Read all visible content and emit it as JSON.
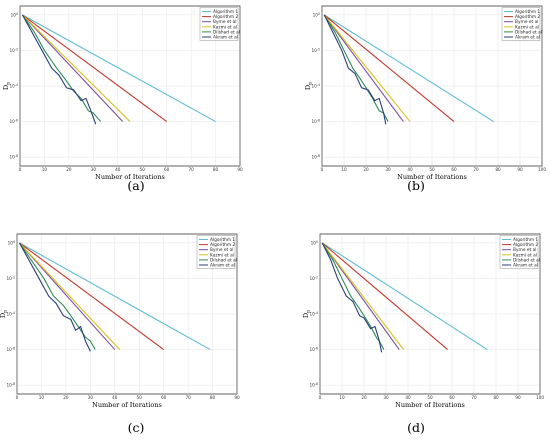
{
  "figure": {
    "legend_entries": [
      "Algorithm 1",
      "Algorithm 2",
      "Byrne et al",
      "Kazmi et al",
      "Dilshad et al",
      "Akram et al"
    ]
  },
  "colors": {
    "Algorithm 1": "#5dbcd6",
    "Algorithm 2": "#c0392b",
    "Byrne et al": "#7b4fa0",
    "Kazmi et al": "#d8c21c",
    "Dilshad et al": "#2e8b57",
    "Akram et al": "#2c3e7a"
  },
  "chart_data": [
    {
      "type": "line",
      "caption": "(a)",
      "xlabel": "Number of Iterations",
      "ylabel": "D_n",
      "xlim": [
        0,
        90
      ],
      "xticks": [
        0,
        10,
        20,
        30,
        40,
        50,
        60,
        70,
        80,
        90
      ],
      "yscale": "log",
      "yticks": [
        "10^0",
        "10^-2",
        "10^-4",
        "10^-6",
        "10^-8"
      ],
      "grid": true,
      "legend_position": "top-right",
      "series": [
        {
          "name": "Algorithm 1",
          "x": [
            1,
            80
          ],
          "y": [
            1.0,
            1e-06
          ]
        },
        {
          "name": "Algorithm 2",
          "x": [
            1,
            60
          ],
          "y": [
            1.0,
            1e-06
          ]
        },
        {
          "name": "Byrne et al",
          "x": [
            1,
            42
          ],
          "y": [
            1.0,
            1e-06
          ]
        },
        {
          "name": "Kazmi et al",
          "x": [
            1,
            45
          ],
          "y": [
            1.0,
            1e-06
          ]
        },
        {
          "name": "Dilshad et al",
          "x": [
            1,
            6,
            10,
            15,
            18,
            22,
            25,
            28,
            30,
            33
          ],
          "y": [
            1.0,
            0.1,
            0.01,
            0.001,
            0.0003,
            5e-05,
            2e-05,
            4e-06,
            3e-06,
            1e-06
          ]
        },
        {
          "name": "Akram et al",
          "x": [
            1,
            5,
            9,
            13,
            16,
            19,
            22,
            25,
            27,
            29,
            31
          ],
          "y": [
            1.0,
            0.1,
            0.01,
            0.001,
            0.0004,
            8e-05,
            6e-05,
            1.5e-05,
            2e-05,
            4e-06,
            7e-07
          ]
        }
      ]
    },
    {
      "type": "line",
      "caption": "(b)",
      "xlabel": "Number of Iterations",
      "ylabel": "D_n",
      "xlim": [
        0,
        100
      ],
      "xticks": [
        0,
        10,
        20,
        30,
        40,
        50,
        60,
        70,
        80,
        90,
        100
      ],
      "yscale": "log",
      "yticks": [
        "10^0",
        "10^-2",
        "10^-4",
        "10^-6",
        "10^-8"
      ],
      "grid": true,
      "legend_position": "top-right",
      "series": [
        {
          "name": "Algorithm 1",
          "x": [
            1,
            78
          ],
          "y": [
            1.0,
            1e-06
          ]
        },
        {
          "name": "Algorithm 2",
          "x": [
            1,
            60
          ],
          "y": [
            1.0,
            1e-06
          ]
        },
        {
          "name": "Byrne et al",
          "x": [
            1,
            37
          ],
          "y": [
            1.0,
            1e-06
          ]
        },
        {
          "name": "Kazmi et al",
          "x": [
            1,
            40
          ],
          "y": [
            1.0,
            1e-06
          ]
        },
        {
          "name": "Dilshad et al",
          "x": [
            1,
            6,
            10,
            14,
            17,
            20,
            23,
            26,
            28,
            30
          ],
          "y": [
            1.0,
            0.1,
            0.01,
            0.001,
            0.0003,
            8e-05,
            2e-05,
            4e-06,
            3e-06,
            1e-06
          ]
        },
        {
          "name": "Akram et al",
          "x": [
            1,
            5,
            9,
            12,
            15,
            18,
            21,
            24,
            26,
            28,
            29
          ],
          "y": [
            1.0,
            0.1,
            0.01,
            0.001,
            0.0005,
            8e-05,
            6e-05,
            1.5e-05,
            2e-05,
            3e-06,
            7e-07
          ]
        }
      ]
    },
    {
      "type": "line",
      "caption": "(c)",
      "xlabel": "Number of Iterations",
      "ylabel": "D_n",
      "xlim": [
        0,
        90
      ],
      "xticks": [
        0,
        10,
        20,
        30,
        40,
        50,
        60,
        70,
        80,
        90
      ],
      "yscale": "log",
      "yticks": [
        "10^0",
        "10^-2",
        "10^-4",
        "10^-6",
        "10^-8"
      ],
      "grid": true,
      "legend_position": "top-right",
      "series": [
        {
          "name": "Algorithm 1",
          "x": [
            1,
            79
          ],
          "y": [
            1.0,
            1e-06
          ]
        },
        {
          "name": "Algorithm 2",
          "x": [
            1,
            60
          ],
          "y": [
            1.0,
            1e-06
          ]
        },
        {
          "name": "Byrne et al",
          "x": [
            1,
            40
          ],
          "y": [
            1.0,
            1e-06
          ]
        },
        {
          "name": "Kazmi et al",
          "x": [
            1,
            42
          ],
          "y": [
            1.0,
            1e-06
          ]
        },
        {
          "name": "Dilshad et al",
          "x": [
            1,
            6,
            11,
            15,
            19,
            22,
            25,
            28,
            30,
            32
          ],
          "y": [
            1.0,
            0.1,
            0.01,
            0.001,
            0.0003,
            8e-05,
            2e-05,
            5e-06,
            3e-06,
            1e-06
          ]
        },
        {
          "name": "Akram et al",
          "x": [
            1,
            5,
            9,
            13,
            16,
            19,
            22,
            24,
            26,
            28,
            30
          ],
          "y": [
            1.0,
            0.1,
            0.01,
            0.001,
            0.0004,
            8e-05,
            5e-05,
            1.2e-05,
            2e-05,
            3e-06,
            8e-07
          ]
        }
      ]
    },
    {
      "type": "line",
      "caption": "(d)",
      "xlabel": "Number of Iterations",
      "ylabel": "D_n",
      "xlim": [
        0,
        100
      ],
      "xticks": [
        0,
        10,
        20,
        30,
        40,
        50,
        60,
        70,
        80,
        90,
        100
      ],
      "yscale": "log",
      "yticks": [
        "10^0",
        "10^-2",
        "10^-4",
        "10^-6",
        "10^-8"
      ],
      "grid": true,
      "legend_position": "top-right",
      "series": [
        {
          "name": "Algorithm 1",
          "x": [
            1,
            76
          ],
          "y": [
            1.0,
            1e-06
          ]
        },
        {
          "name": "Algorithm 2",
          "x": [
            1,
            58
          ],
          "y": [
            1.0,
            1e-06
          ]
        },
        {
          "name": "Byrne et al",
          "x": [
            1,
            36
          ],
          "y": [
            1.0,
            1e-06
          ]
        },
        {
          "name": "Kazmi et al",
          "x": [
            1,
            38
          ],
          "y": [
            1.0,
            1e-06
          ]
        },
        {
          "name": "Dilshad et al",
          "x": [
            1,
            6,
            10,
            14,
            17,
            20,
            23,
            26,
            27,
            29
          ],
          "y": [
            1.0,
            0.1,
            0.01,
            0.001,
            0.0003,
            8e-05,
            2e-05,
            4e-06,
            3e-06,
            1e-06
          ]
        },
        {
          "name": "Akram et al",
          "x": [
            1,
            5,
            8,
            12,
            15,
            18,
            20,
            23,
            25,
            27,
            28
          ],
          "y": [
            1.0,
            0.1,
            0.01,
            0.001,
            0.0005,
            8e-05,
            6e-05,
            1.5e-05,
            2e-05,
            3e-06,
            7e-07
          ]
        }
      ]
    }
  ]
}
